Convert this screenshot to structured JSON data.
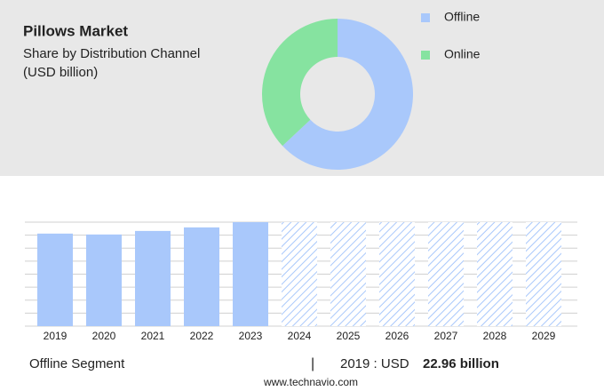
{
  "header": {
    "title": "Pillows Market",
    "subtitle": "Share by Distribution Channel",
    "unit": "(USD billion)"
  },
  "chart_data": [
    {
      "type": "pie",
      "donut": true,
      "categories": [
        "Offline",
        "Online"
      ],
      "values": [
        63,
        37
      ],
      "colors": [
        "#a9c8fb",
        "#86e3a0"
      ],
      "legend": "right"
    },
    {
      "type": "bar",
      "categories": [
        "2019",
        "2020",
        "2021",
        "2022",
        "2023",
        "2024",
        "2025",
        "2026",
        "2027",
        "2028",
        "2029"
      ],
      "values": [
        22.96,
        22.74,
        23.62,
        24.5,
        25.8,
        null,
        null,
        null,
        null,
        null,
        null
      ],
      "color": "#a9c8fb",
      "ylim": [
        0,
        25.8
      ],
      "grid": true
    }
  ],
  "footer": {
    "segment": "Offline Segment",
    "separator": "|",
    "year_label": "2019 : USD",
    "value_label": "22.96 billion",
    "source": "www.technavio.com"
  }
}
